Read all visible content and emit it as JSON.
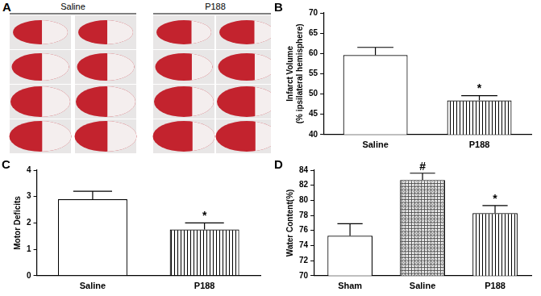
{
  "image_panel": {
    "panel_label": "A",
    "groups": [
      "Saline",
      "P188"
    ]
  },
  "chart_data": [
    {
      "type": "bar",
      "panel_label": "B",
      "ylabel": [
        "Infarct Volume",
        "(% ipsilateral hemisphere)"
      ],
      "categories": [
        "Saline",
        "P188"
      ],
      "values": [
        59.6,
        48.4
      ],
      "errors": [
        1.9,
        1.2
      ],
      "color": "#ffffff",
      "ylim": [
        40,
        70
      ],
      "yticks": [
        40,
        45,
        50,
        55,
        60,
        65,
        70
      ],
      "grid": false,
      "annotations": [
        {
          "category": "P188",
          "text": "*"
        }
      ]
    },
    {
      "type": "bar",
      "panel_label": "C",
      "ylabel": "Motor Deficits",
      "categories": [
        "Saline",
        "P188"
      ],
      "values": [
        2.9,
        1.75
      ],
      "errors": [
        0.3,
        0.25
      ],
      "color": "#ffffff",
      "ylim": [
        0,
        4
      ],
      "yticks": [
        0,
        1,
        2,
        3,
        4
      ],
      "grid": false,
      "annotations": [
        {
          "category": "P188",
          "text": "*"
        }
      ]
    },
    {
      "type": "bar",
      "panel_label": "D",
      "ylabel": "Water Content(%)",
      "categories": [
        "Sham",
        "Saline",
        "P188"
      ],
      "values": [
        75.3,
        82.7,
        78.3
      ],
      "errors": [
        1.6,
        0.9,
        1.0
      ],
      "color": "#ffffff",
      "ylim": [
        70,
        84
      ],
      "yticks": [
        70,
        72,
        74,
        76,
        78,
        80,
        82,
        84
      ],
      "grid": false,
      "annotations": [
        {
          "category": "Saline",
          "text": "#"
        },
        {
          "category": "P188",
          "text": "*"
        }
      ]
    }
  ]
}
